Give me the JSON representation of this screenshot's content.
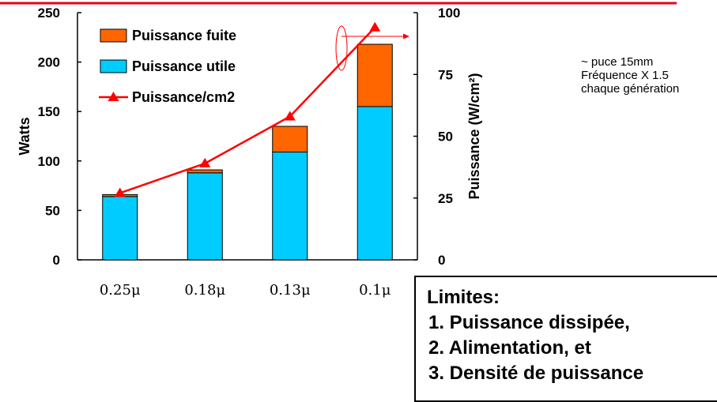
{
  "chart_data": {
    "type": "bar",
    "stacked": true,
    "categories": [
      "0.25μ",
      "0.18μ",
      "0.13μ",
      "0.1μ"
    ],
    "series": [
      {
        "name": "Puissance utile",
        "kind": "bar",
        "axis": "left",
        "color": "#00CCFF",
        "values": [
          64,
          88,
          109,
          155
        ]
      },
      {
        "name": "Puissance fuite",
        "kind": "bar",
        "axis": "left",
        "color": "#FF6600",
        "values": [
          2,
          3,
          26,
          63
        ]
      },
      {
        "name": "Puissance/cm2",
        "kind": "line",
        "axis": "right",
        "color": "#FF0000",
        "marker": "triangle",
        "values": [
          27,
          39,
          58,
          94
        ]
      }
    ],
    "ylabel": "Watts",
    "ylim": [
      0,
      250
    ],
    "yticks": [
      "0",
      "50",
      "100",
      "150",
      "200",
      "250"
    ],
    "y2label": "Puissance (W/cm²)",
    "y2lim": [
      0,
      100
    ],
    "y2ticks": [
      "0",
      "25",
      "50",
      "75",
      "100"
    ],
    "grid": false,
    "legend_position": "top-left",
    "legend_order": [
      "Puissance fuite",
      "Puissance utile",
      "Puissance/cm2"
    ]
  },
  "note": {
    "lines": [
      "~ puce 15mm",
      "Fréquence X 1.5",
      "chaque génération"
    ]
  },
  "limits": {
    "title": "Limites:",
    "items": [
      "1. Puissance dissipée,",
      "2. Alimentation, et",
      "3. Densité de puissance"
    ]
  },
  "colors": {
    "top_rule": "#E8001C",
    "trend_arrow": "#FF0000"
  }
}
